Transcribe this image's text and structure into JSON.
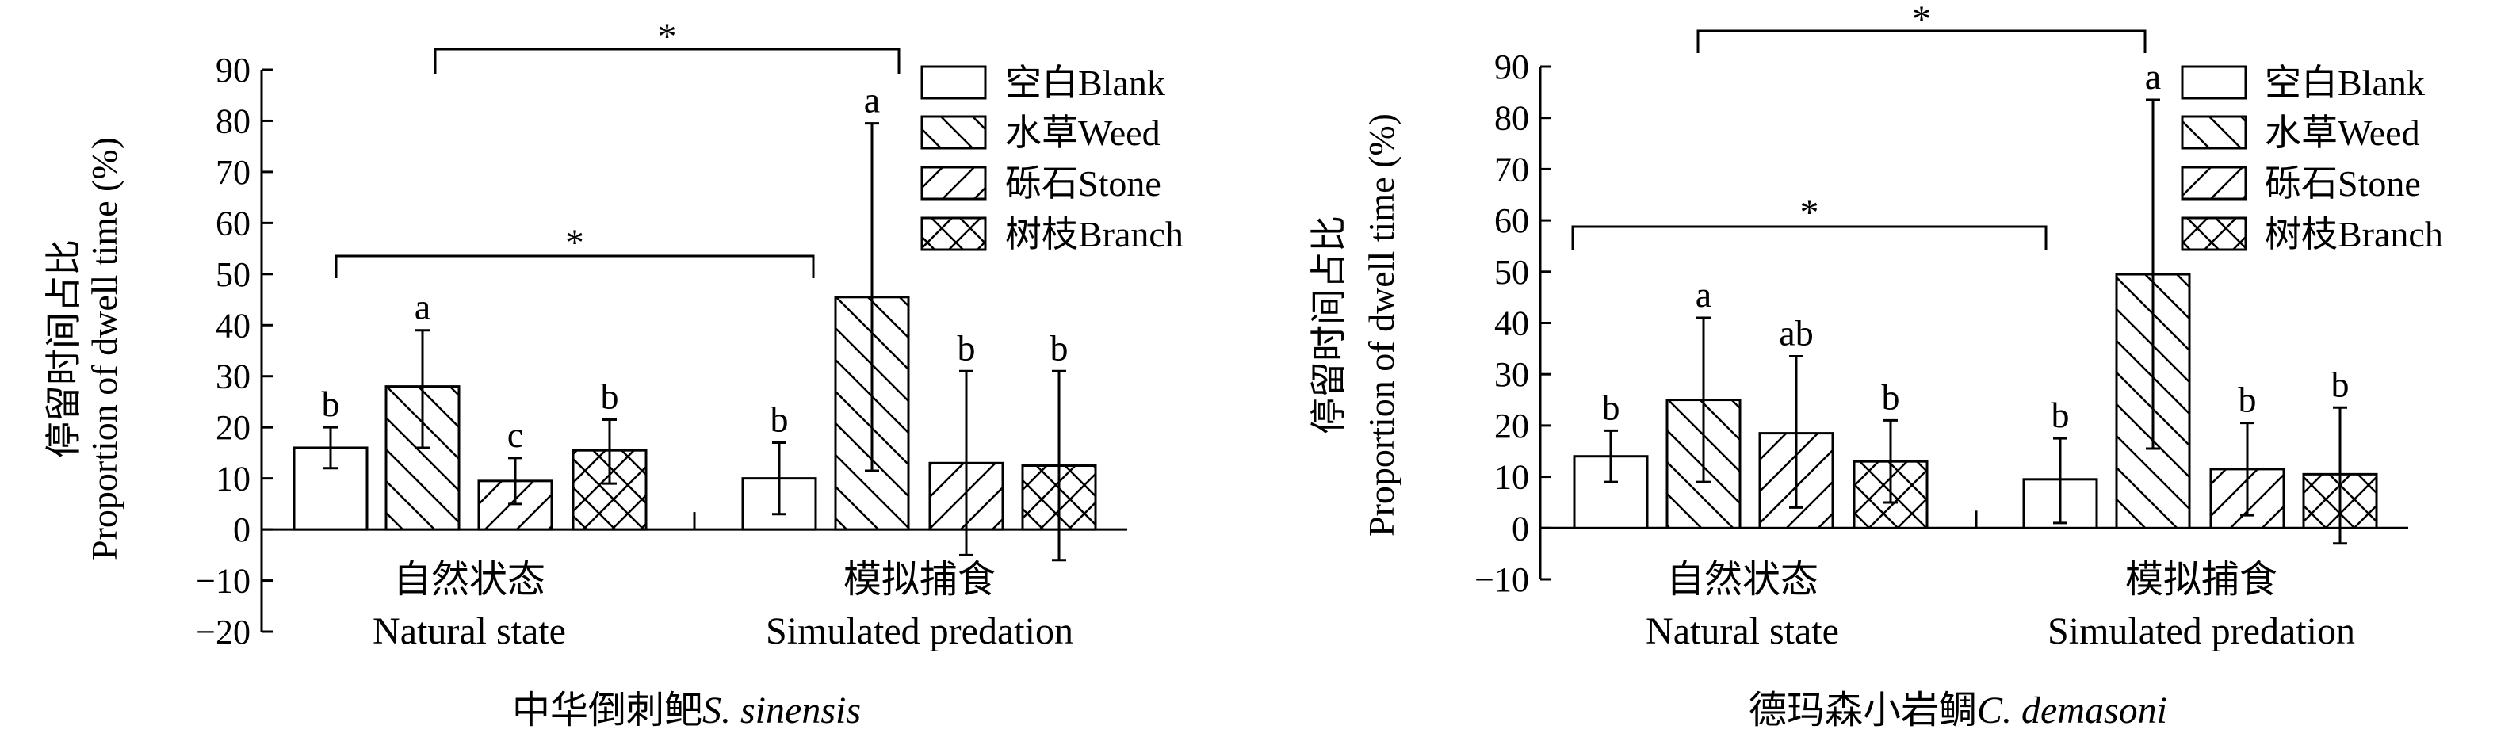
{
  "chart_data": [
    {
      "type": "bar",
      "title": "中华倒刺鲃",
      "title_italic": "S. sinensis",
      "ylabel_cn": "停留时间占比",
      "ylabel": "Proportion of dwell time (%)",
      "ylim": [
        -20,
        90
      ],
      "yticks": [
        90,
        80,
        70,
        60,
        50,
        40,
        30,
        20,
        10,
        0,
        -10,
        -20
      ],
      "categories": [
        {
          "cn": "自然状态",
          "en": "Natural state"
        },
        {
          "cn": "模拟捕食",
          "en": "Simulated predation"
        }
      ],
      "legend_placement": "top-right",
      "series": [
        {
          "name": "空白Blank",
          "pattern": "none",
          "values": [
            16,
            10
          ],
          "err_low": [
            12,
            3
          ],
          "err_high": [
            20,
            17
          ],
          "letters": [
            "b",
            "b"
          ]
        },
        {
          "name": "水草Weed",
          "pattern": "back-diagonal",
          "values": [
            28,
            45.5
          ],
          "err_low": [
            16,
            11.5
          ],
          "err_high": [
            39,
            79.5
          ],
          "letters": [
            "a",
            "a"
          ]
        },
        {
          "name": "砾石Stone",
          "pattern": "forward-diagonal",
          "values": [
            9.5,
            13
          ],
          "err_low": [
            5,
            -5
          ],
          "err_high": [
            14,
            31
          ],
          "letters": [
            "c",
            "b"
          ]
        },
        {
          "name": "树枝Branch",
          "pattern": "cross-hatch",
          "values": [
            15.5,
            12.5
          ],
          "err_low": [
            9,
            -6
          ],
          "err_high": [
            21.5,
            31
          ],
          "letters": [
            "b",
            "b"
          ]
        }
      ],
      "significance": [
        "*",
        "*"
      ]
    },
    {
      "type": "bar",
      "title": "德玛森小岩鲷",
      "title_italic": "C. demasoni",
      "ylabel_cn": "停留时间占比",
      "ylabel": "Proportion of dwell time (%)",
      "ylim": [
        -10,
        90
      ],
      "yticks": [
        90,
        80,
        70,
        60,
        50,
        40,
        30,
        20,
        10,
        0,
        -10
      ],
      "categories": [
        {
          "cn": "自然状态",
          "en": "Natural state"
        },
        {
          "cn": "模拟捕食",
          "en": "Simulated predation"
        }
      ],
      "legend_placement": "top-right",
      "series": [
        {
          "name": "空白Blank",
          "pattern": "none",
          "values": [
            14,
            9.5
          ],
          "err_low": [
            9,
            1
          ],
          "err_high": [
            19,
            17.5
          ],
          "letters": [
            "b",
            "b"
          ]
        },
        {
          "name": "水草Weed",
          "pattern": "back-diagonal",
          "values": [
            25,
            49.5
          ],
          "err_low": [
            9,
            15.5
          ],
          "err_high": [
            41,
            83.5
          ],
          "letters": [
            "a",
            "a"
          ]
        },
        {
          "name": "砾石Stone",
          "pattern": "forward-diagonal",
          "values": [
            18.5,
            11.5
          ],
          "err_low": [
            4,
            2.5
          ],
          "err_high": [
            33.5,
            20.5
          ],
          "letters": [
            "ab",
            "b"
          ]
        },
        {
          "name": "树枝Branch",
          "pattern": "cross-hatch",
          "values": [
            13,
            10.5
          ],
          "err_low": [
            5,
            -3
          ],
          "err_high": [
            21,
            23.5
          ],
          "letters": [
            "b",
            "b"
          ]
        }
      ],
      "significance": [
        "*",
        "*"
      ]
    }
  ]
}
